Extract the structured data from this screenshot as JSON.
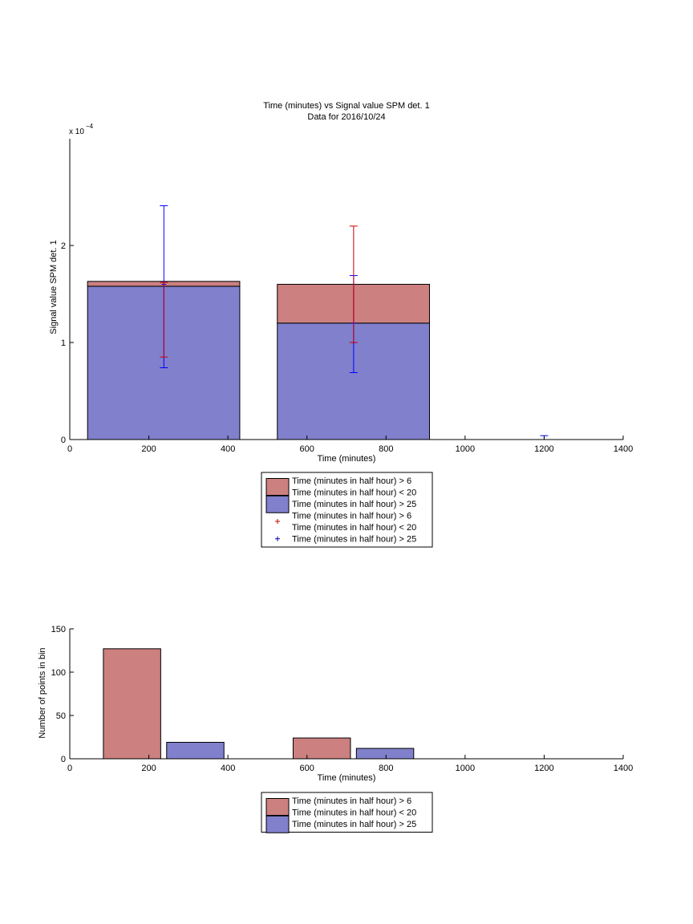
{
  "chart_data": [
    {
      "type": "bar",
      "stacked": true,
      "title": "Time (minutes) vs Signal value SPM det. 1",
      "subtitle": "Data for 2016/10/24",
      "xlabel": "Time (minutes)",
      "ylabel": "Signal value SPM det. 1",
      "y_exponent_label": "x 10",
      "y_exponent_power": "−4",
      "xlim": [
        0,
        1400
      ],
      "ylim": [
        0,
        3.1
      ],
      "x_ticks": [
        0,
        200,
        400,
        600,
        800,
        1000,
        1200,
        1400
      ],
      "y_ticks": [
        0,
        1,
        2
      ],
      "grid": false,
      "legend_position": "below",
      "bars": [
        {
          "x_start": 45,
          "x_end": 430,
          "center": 238,
          "series_values": [
            1.58,
            0.05
          ]
        },
        {
          "x_start": 525,
          "x_end": 910,
          "center": 718,
          "series_values": [
            1.2,
            0.4
          ]
        }
      ],
      "series": [
        {
          "name": "Time (minutes in half hour) > 25",
          "color": "#8080cc"
        },
        {
          "name": "Time (minutes in half hour) > 6\nTime (minutes in half hour) < 20",
          "color": "#cc8080"
        }
      ],
      "error_bars": [
        {
          "series": "blue",
          "color": "#0000ff",
          "x": 238,
          "y": 1.6,
          "low": 0.74,
          "high": 2.41
        },
        {
          "series": "red",
          "color": "#cc0000",
          "x": 238,
          "y": 1.62,
          "low": 0.85,
          "high": 1.62
        },
        {
          "series": "blue",
          "color": "#0000ff",
          "x": 718,
          "y": 1.2,
          "low": 0.69,
          "high": 1.69
        },
        {
          "series": "red",
          "color": "#cc0000",
          "x": 718,
          "y": 1.0,
          "low": 1.0,
          "high": 2.2
        },
        {
          "series": "blue",
          "color": "#0000ff",
          "x": 1200,
          "y": 0.0,
          "low": 0.0,
          "high": 0.04
        }
      ],
      "legend": [
        {
          "kind": "patch",
          "color": "#cc8080",
          "lines": [
            "Time (minutes in half hour) > 6",
            "Time (minutes in half hour) < 20"
          ]
        },
        {
          "kind": "patch",
          "color": "#8080cc",
          "lines": [
            "Time (minutes in half hour) > 25"
          ]
        },
        {
          "kind": "marker",
          "color": "#cc0000",
          "lines": [
            "Time (minutes in half hour) > 6",
            "Time (minutes in half hour) < 20"
          ]
        },
        {
          "kind": "marker",
          "color": "#0000aa",
          "lines": [
            "Time (minutes in half hour) > 25"
          ]
        }
      ]
    },
    {
      "type": "bar",
      "xlabel": "Time (minutes)",
      "ylabel": "Number of points in bin",
      "xlim": [
        0,
        1400
      ],
      "ylim": [
        0,
        150
      ],
      "x_ticks": [
        0,
        200,
        400,
        600,
        800,
        1000,
        1200,
        1400
      ],
      "y_ticks": [
        0,
        50,
        100,
        150
      ],
      "grid": false,
      "legend_position": "below",
      "bars": [
        {
          "x_start": 85,
          "x_end": 230,
          "value": 127,
          "color": "#cc8080"
        },
        {
          "x_start": 245,
          "x_end": 390,
          "value": 19,
          "color": "#8080cc"
        },
        {
          "x_start": 565,
          "x_end": 710,
          "value": 24,
          "color": "#cc8080"
        },
        {
          "x_start": 725,
          "x_end": 870,
          "value": 12,
          "color": "#8080cc"
        }
      ],
      "legend": [
        {
          "kind": "patch",
          "color": "#cc8080",
          "lines": [
            "Time (minutes in half hour) > 6",
            "Time (minutes in half hour) < 20"
          ]
        },
        {
          "kind": "patch",
          "color": "#8080cc",
          "lines": [
            "Time (minutes in half hour) > 25"
          ]
        }
      ]
    }
  ]
}
